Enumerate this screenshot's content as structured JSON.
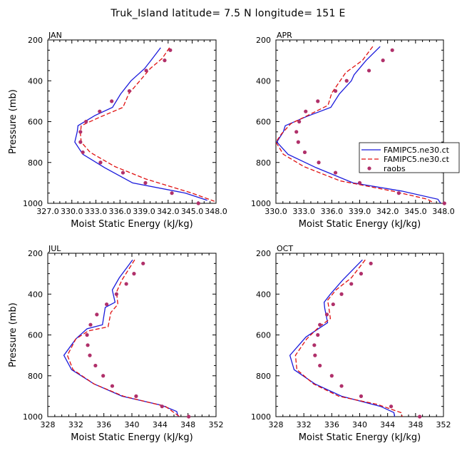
{
  "title": "Truk_Island   latitude= 7.5 N longitude= 151 E",
  "colors": {
    "model1": "#1a1adc",
    "model2": "#e01010",
    "obs": "#b0306a"
  },
  "legend": {
    "items": [
      {
        "label": "FAMIPC5.ne30.ct",
        "style": "solid"
      },
      {
        "label": "FAMIPC5.ne30.ct",
        "style": "dashed"
      },
      {
        "label": "raobs",
        "style": "dot"
      }
    ]
  },
  "chart_data": [
    {
      "type": "line",
      "label": "JAN",
      "xlabel": "Moist Static Energy (kJ/kg)",
      "ylabel": "Pressure (mb)",
      "xlim": [
        327.03,
        348.0
      ],
      "ylim": [
        200,
        1000
      ],
      "xticks": [
        327.03,
        330.03,
        333.03,
        336.03,
        339.03,
        342.03,
        345.03,
        348.0
      ],
      "xtick_labels": [
        "327.0",
        "330.0",
        "333.0",
        "336.0",
        "339.0",
        "342.0",
        "345.0",
        "348.0"
      ],
      "yticks": [
        200,
        400,
        600,
        800,
        1000
      ],
      "ytick_labels": [
        "200",
        "400",
        "600",
        "800",
        "1000"
      ],
      "series": [
        {
          "name": "FAMIPC5.ne30.ct solid",
          "style": "solid",
          "points": [
            [
              341.1,
              238
            ],
            [
              339.9,
              300
            ],
            [
              339.1,
              340
            ],
            [
              337.4,
              400
            ],
            [
              336.1,
              465
            ],
            [
              335.1,
              530
            ],
            [
              332.9,
              570
            ],
            [
              330.8,
              620
            ],
            [
              330.7,
              650
            ],
            [
              330.4,
              700
            ],
            [
              331.4,
              760
            ],
            [
              334.1,
              825
            ],
            [
              337.6,
              900
            ],
            [
              344.2,
              950
            ],
            [
              346.9,
              985
            ]
          ]
        },
        {
          "name": "FAMIPC5.ne30.ct dashed",
          "style": "dashed",
          "points": [
            [
              342.2,
              238
            ],
            [
              341.3,
              290
            ],
            [
              339.8,
              340
            ],
            [
              338.5,
              400
            ],
            [
              337.1,
              465
            ],
            [
              336.4,
              530
            ],
            [
              333.4,
              580
            ],
            [
              331.2,
              620
            ],
            [
              331.1,
              660
            ],
            [
              331.2,
              700
            ],
            [
              332.3,
              750
            ],
            [
              335.4,
              820
            ],
            [
              339.2,
              880
            ],
            [
              345.0,
              950
            ],
            [
              347.8,
              990
            ]
          ]
        },
        {
          "name": "raobs",
          "style": "dot",
          "points": [
            [
              342.3,
              250
            ],
            [
              341.6,
              300
            ],
            [
              339.3,
              350
            ],
            [
              337.2,
              450
            ],
            [
              335.0,
              500
            ],
            [
              333.5,
              550
            ],
            [
              331.8,
              600
            ],
            [
              331.1,
              650
            ],
            [
              331.1,
              700
            ],
            [
              331.4,
              750
            ],
            [
              333.6,
              800
            ],
            [
              336.4,
              850
            ],
            [
              339.2,
              900
            ],
            [
              342.5,
              950
            ],
            [
              345.8,
              1000
            ]
          ]
        }
      ]
    },
    {
      "type": "line",
      "label": "APR",
      "xlabel": "Moist Static Energy (kJ/kg)",
      "ylabel": "Pressure (mb)",
      "xlim": [
        330.0,
        348.0
      ],
      "ylim": [
        200,
        1000
      ],
      "xticks": [
        330.0,
        333.0,
        336.0,
        339.0,
        342.0,
        345.0,
        348.0
      ],
      "xtick_labels": [
        "330.0",
        "333.0",
        "336.0",
        "339.0",
        "342.0",
        "345.0",
        "348.0"
      ],
      "yticks": [
        200,
        400,
        600,
        800,
        1000
      ],
      "ytick_labels": [
        "200",
        "400",
        "600",
        "800",
        "1000"
      ],
      "series": [
        {
          "name": "FAMIPC5.ne30.ct solid",
          "style": "solid",
          "points": [
            [
              341.2,
              232
            ],
            [
              339.7,
              300
            ],
            [
              338.4,
              370
            ],
            [
              338.1,
              400
            ],
            [
              336.8,
              465
            ],
            [
              335.9,
              530
            ],
            [
              333.3,
              575
            ],
            [
              331.0,
              620
            ],
            [
              330.8,
              650
            ],
            [
              330.1,
              700
            ],
            [
              331.3,
              760
            ],
            [
              334.3,
              825
            ],
            [
              338.3,
              900
            ],
            [
              343.5,
              940
            ],
            [
              347.4,
              980
            ],
            [
              347.7,
              1000
            ]
          ]
        },
        {
          "name": "FAMIPC5.ne30.ct dashed",
          "style": "dashed",
          "points": [
            [
              340.4,
              232
            ],
            [
              339.3,
              300
            ],
            [
              337.5,
              360
            ],
            [
              336.9,
              400
            ],
            [
              336.0,
              460
            ],
            [
              335.6,
              520
            ],
            [
              333.4,
              570
            ],
            [
              331.6,
              610
            ],
            [
              330.6,
              660
            ],
            [
              330.0,
              700
            ],
            [
              330.8,
              760
            ],
            [
              333.0,
              820
            ],
            [
              336.9,
              890
            ],
            [
              342.5,
              940
            ],
            [
              346.3,
              980
            ],
            [
              347.0,
              1000
            ]
          ]
        },
        {
          "name": "raobs",
          "style": "dot",
          "points": [
            [
              342.5,
              250
            ],
            [
              341.5,
              300
            ],
            [
              340.0,
              350
            ],
            [
              337.6,
              400
            ],
            [
              336.4,
              450
            ],
            [
              334.5,
              500
            ],
            [
              333.2,
              550
            ],
            [
              332.5,
              600
            ],
            [
              332.2,
              650
            ],
            [
              332.4,
              700
            ],
            [
              333.1,
              750
            ],
            [
              334.6,
              800
            ],
            [
              336.4,
              850
            ],
            [
              339.0,
              900
            ],
            [
              343.2,
              950
            ],
            [
              348.1,
              1000
            ]
          ]
        }
      ]
    },
    {
      "type": "line",
      "label": "JUL",
      "xlabel": "Moist Static Energy (kJ/kg)",
      "ylabel": "Pressure (mb)",
      "xlim": [
        328,
        352
      ],
      "ylim": [
        200,
        1000
      ],
      "xticks": [
        328,
        332,
        336,
        340,
        344,
        348,
        352
      ],
      "xtick_labels": [
        "328",
        "332",
        "336",
        "340",
        "344",
        "348",
        "352"
      ],
      "yticks": [
        200,
        400,
        600,
        800,
        1000
      ],
      "ytick_labels": [
        "200",
        "400",
        "600",
        "800",
        "1000"
      ],
      "series": [
        {
          "name": "FAMIPC5.ne30.ct solid",
          "style": "solid",
          "points": [
            [
              340.1,
              232
            ],
            [
              338.2,
              320
            ],
            [
              337.2,
              380
            ],
            [
              337.6,
              440
            ],
            [
              336.2,
              465
            ],
            [
              335.8,
              550
            ],
            [
              333.6,
              570
            ],
            [
              332.0,
              620
            ],
            [
              330.3,
              700
            ],
            [
              331.4,
              770
            ],
            [
              334.6,
              840
            ],
            [
              338.6,
              900
            ],
            [
              344.3,
              945
            ],
            [
              346.4,
              975
            ],
            [
              346.6,
              1000
            ]
          ]
        },
        {
          "name": "FAMIPC5.ne30.ct dashed",
          "style": "dashed",
          "points": [
            [
              340.4,
              232
            ],
            [
              338.6,
              330
            ],
            [
              337.8,
              390
            ],
            [
              338.0,
              450
            ],
            [
              337.0,
              490
            ],
            [
              336.6,
              560
            ],
            [
              333.8,
              580
            ],
            [
              332.0,
              620
            ],
            [
              330.8,
              700
            ],
            [
              331.6,
              770
            ],
            [
              334.6,
              840
            ],
            [
              338.8,
              900
            ],
            [
              344.8,
              950
            ],
            [
              346.8,
              1000
            ]
          ]
        },
        {
          "name": "raobs",
          "style": "dot",
          "points": [
            [
              341.6,
              250
            ],
            [
              340.3,
              300
            ],
            [
              339.2,
              350
            ],
            [
              337.8,
              400
            ],
            [
              336.4,
              450
            ],
            [
              335.0,
              500
            ],
            [
              334.1,
              550
            ],
            [
              333.6,
              600
            ],
            [
              333.7,
              650
            ],
            [
              334.0,
              700
            ],
            [
              334.8,
              750
            ],
            [
              335.9,
              800
            ],
            [
              337.2,
              850
            ],
            [
              340.6,
              900
            ],
            [
              344.3,
              950
            ],
            [
              348.1,
              1000
            ]
          ]
        }
      ]
    },
    {
      "type": "line",
      "label": "OCT",
      "xlabel": "Moist Static Energy (kJ/kg)",
      "ylabel": "Pressure (mb)",
      "xlim": [
        328,
        352
      ],
      "ylim": [
        200,
        1000
      ],
      "xticks": [
        328,
        332,
        336,
        340,
        344,
        348,
        352
      ],
      "xtick_labels": [
        "328",
        "332",
        "336",
        "340",
        "344",
        "348",
        "352"
      ],
      "yticks": [
        200,
        400,
        600,
        800,
        1000
      ],
      "ytick_labels": [
        "200",
        "400",
        "600",
        "800",
        "1000"
      ],
      "series": [
        {
          "name": "FAMIPC5.ne30.ct solid",
          "style": "solid",
          "points": [
            [
              340.4,
              232
            ],
            [
              337.6,
              330
            ],
            [
              335.8,
              400
            ],
            [
              334.9,
              440
            ],
            [
              335.0,
              470
            ],
            [
              335.4,
              540
            ],
            [
              332.3,
              610
            ],
            [
              330.0,
              700
            ],
            [
              330.6,
              770
            ],
            [
              333.6,
              840
            ],
            [
              337.4,
              900
            ],
            [
              343.0,
              950
            ],
            [
              344.9,
              980
            ],
            [
              345.0,
              1000
            ]
          ]
        },
        {
          "name": "FAMIPC5.ne30.ct dashed",
          "style": "dashed",
          "points": [
            [
              340.8,
              232
            ],
            [
              338.8,
              320
            ],
            [
              336.6,
              380
            ],
            [
              335.4,
              430
            ],
            [
              335.6,
              470
            ],
            [
              335.8,
              520
            ],
            [
              334.2,
              560
            ],
            [
              332.4,
              620
            ],
            [
              330.8,
              700
            ],
            [
              331.0,
              770
            ],
            [
              333.4,
              840
            ],
            [
              337.0,
              900
            ],
            [
              342.5,
              940
            ],
            [
              345.9,
              980
            ],
            [
              346.1,
              1000
            ]
          ]
        },
        {
          "name": "raobs",
          "style": "dot",
          "points": [
            [
              341.6,
              250
            ],
            [
              340.2,
              300
            ],
            [
              338.8,
              350
            ],
            [
              337.4,
              400
            ],
            [
              336.2,
              450
            ],
            [
              335.3,
              500
            ],
            [
              334.3,
              550
            ],
            [
              334.0,
              600
            ],
            [
              333.5,
              650
            ],
            [
              333.6,
              700
            ],
            [
              334.3,
              750
            ],
            [
              336.0,
              800
            ],
            [
              337.4,
              850
            ],
            [
              340.2,
              900
            ],
            [
              344.5,
              950
            ],
            [
              348.6,
              1000
            ]
          ]
        }
      ]
    }
  ]
}
